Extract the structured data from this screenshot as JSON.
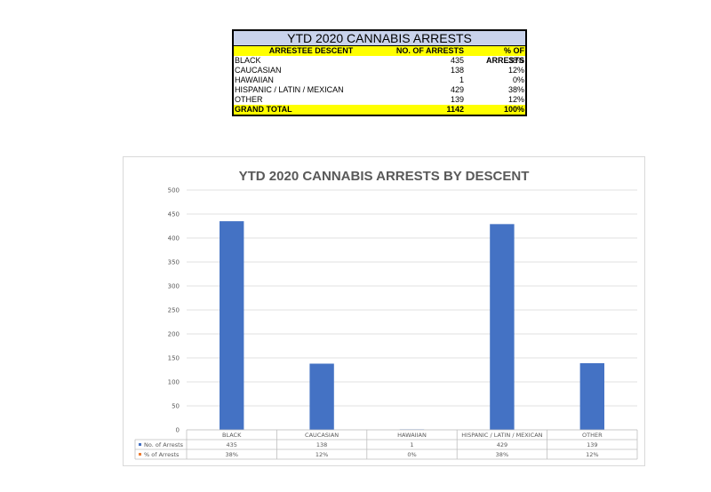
{
  "table": {
    "title": "YTD 2020 CANNABIS ARRESTS",
    "headers": [
      "ARRESTEE DESCENT",
      "NO. OF ARRESTS",
      "% OF ARRESTS"
    ],
    "rows": [
      [
        "BLACK",
        "435",
        "38%"
      ],
      [
        "CAUCASIAN",
        "138",
        "12%"
      ],
      [
        "HAWAIIAN",
        "1",
        "0%"
      ],
      [
        "HISPANIC / LATIN / MEXICAN",
        "429",
        "38%"
      ],
      [
        "OTHER",
        "139",
        "12%"
      ]
    ],
    "total": [
      "GRAND TOTAL",
      "1142",
      "100%"
    ]
  },
  "chart_data": {
    "type": "bar",
    "title": "YTD 2020 CANNABIS ARRESTS BY DESCENT",
    "categories": [
      "BLACK",
      "CAUCASIAN",
      "HAWAIIAN",
      "HISPANIC / LATIN / MEXICAN",
      "OTHER"
    ],
    "series": [
      {
        "name": "No. of Arrests",
        "values": [
          435,
          138,
          1,
          429,
          139
        ],
        "labels": [
          "435",
          "138",
          "1",
          "429",
          "139"
        ],
        "color": "#4472c4"
      },
      {
        "name": "% of Arrests",
        "values": [
          0.38,
          0.12,
          0.0,
          0.38,
          0.12
        ],
        "labels": [
          "38%",
          "12%",
          "0%",
          "38%",
          "12%"
        ],
        "color": "#ed7d31"
      }
    ],
    "ylim": [
      0,
      500
    ],
    "yticks": [
      0,
      50,
      100,
      150,
      200,
      250,
      300,
      350,
      400,
      450,
      500
    ],
    "grid": true,
    "legend": "data-table"
  }
}
